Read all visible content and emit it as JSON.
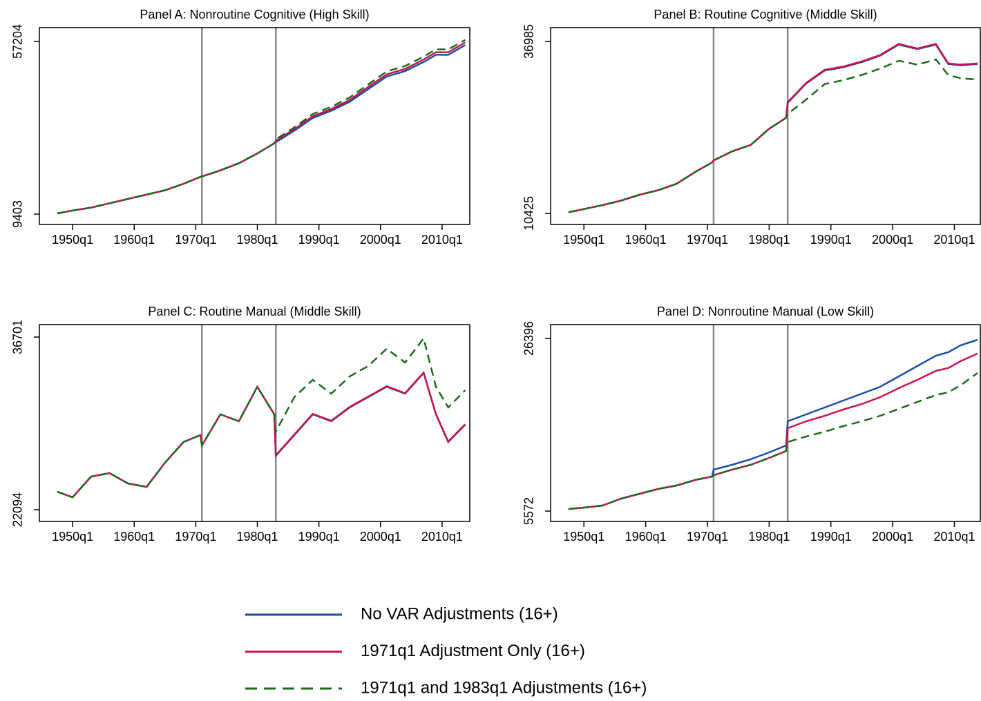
{
  "chart_data": [
    {
      "type": "line",
      "title": "Panel A: Nonroutine Cognitive (High Skill)",
      "x": [
        1947.5,
        1950,
        1953,
        1956,
        1959,
        1962,
        1965,
        1968,
        1970.75,
        1971,
        1974,
        1977,
        1980,
        1982.75,
        1983,
        1986,
        1989,
        1992,
        1995,
        1998,
        2001,
        2004,
        2007,
        2009,
        2011,
        2013.75
      ],
      "xlim": [
        1944.6,
        2014.5
      ],
      "ylim": [
        6535,
        61028
      ],
      "xticks": [
        {
          "value": 1950,
          "label": "1950q1"
        },
        {
          "value": 1960,
          "label": "1960q1"
        },
        {
          "value": 1970,
          "label": "1970q1"
        },
        {
          "value": 1980,
          "label": "1980q1"
        },
        {
          "value": 1990,
          "label": "1990q1"
        },
        {
          "value": 2000,
          "label": "2000q1"
        },
        {
          "value": 2010,
          "label": "2010q1"
        }
      ],
      "yticks": [
        9403,
        57204
      ],
      "vlines": [
        1971,
        1983
      ],
      "series": [
        {
          "name": "No VAR Adjustments (16+)",
          "color": "#1a4ea6",
          "dash": false,
          "values": [
            9600,
            10400,
            11200,
            12400,
            13600,
            14800,
            16000,
            17800,
            19700,
            19800,
            21500,
            23500,
            26200,
            29000,
            29300,
            32500,
            36000,
            38000,
            40500,
            44000,
            47500,
            49000,
            51500,
            53500,
            53500,
            56200
          ]
        },
        {
          "name": "1971q1 Adjustment Only (16+)",
          "color": "#c8144b",
          "dash": false,
          "values": [
            9600,
            10400,
            11200,
            12400,
            13600,
            14800,
            16000,
            17800,
            19700,
            19800,
            21500,
            23500,
            26200,
            29000,
            29700,
            32900,
            36500,
            38500,
            41000,
            44600,
            48100,
            49600,
            52200,
            54200,
            54200,
            56900
          ]
        },
        {
          "name": "1971q1 and 1983q1 Adjustments (16+)",
          "color": "#1a6b1a",
          "dash": true,
          "values": [
            9600,
            10400,
            11200,
            12400,
            13600,
            14800,
            16000,
            17800,
            19700,
            19800,
            21500,
            23500,
            26200,
            29000,
            30100,
            33400,
            37100,
            39100,
            41700,
            45300,
            48900,
            50400,
            53000,
            55000,
            55000,
            57600
          ]
        }
      ]
    },
    {
      "type": "line",
      "title": "Panel B: Routine Cognitive (Middle Skill)",
      "x": [
        1947.5,
        1950,
        1953,
        1956,
        1959,
        1962,
        1965,
        1968,
        1970.75,
        1971,
        1974,
        1977,
        1980,
        1982.75,
        1983,
        1986,
        1989,
        1992,
        1995,
        1998,
        2001,
        2004,
        2007,
        2009,
        2011,
        2013.75
      ],
      "xlim": [
        1944.6,
        2014.2
      ],
      "ylim": [
        8718,
        39119
      ],
      "xticks": [
        {
          "value": 1950,
          "label": "1950q1"
        },
        {
          "value": 1960,
          "label": "1960q1"
        },
        {
          "value": 1970,
          "label": "1970q1"
        },
        {
          "value": 1980,
          "label": "1980q1"
        },
        {
          "value": 1990,
          "label": "1990q1"
        },
        {
          "value": 2000,
          "label": "2000q1"
        },
        {
          "value": 2010,
          "label": "2010q1"
        }
      ],
      "yticks": [
        10425,
        36985
      ],
      "vlines": [
        1971,
        1983
      ],
      "series": [
        {
          "name": "No VAR Adjustments (16+)",
          "color": "#1a4ea6",
          "dash": false,
          "values": [
            10600,
            11100,
            11700,
            12400,
            13300,
            14000,
            15000,
            16800,
            18300,
            18600,
            20000,
            21000,
            23500,
            25200,
            27500,
            30500,
            32500,
            33000,
            33800,
            34800,
            36500,
            35800,
            36500,
            33500,
            33300,
            33500
          ]
        },
        {
          "name": "1971q1 Adjustment Only (16+)",
          "color": "#c8144b",
          "dash": false,
          "values": [
            10600,
            11100,
            11700,
            12400,
            13300,
            14000,
            15000,
            16800,
            18300,
            18600,
            20000,
            21000,
            23500,
            25200,
            27600,
            30600,
            32600,
            33100,
            33900,
            34900,
            36600,
            35900,
            36600,
            33600,
            33400,
            33600
          ]
        },
        {
          "name": "1971q1 and 1983q1 Adjustments (16+)",
          "color": "#1a6b1a",
          "dash": true,
          "values": [
            10600,
            11100,
            11700,
            12400,
            13300,
            14000,
            15000,
            16800,
            18300,
            18600,
            20000,
            21000,
            23500,
            25200,
            25800,
            28000,
            30400,
            31000,
            31800,
            32800,
            34000,
            33400,
            34200,
            31800,
            31300,
            31100
          ]
        }
      ]
    },
    {
      "type": "line",
      "title": "Panel C: Routine Manual (Middle Skill)",
      "x": [
        1947.5,
        1950,
        1953,
        1956,
        1959,
        1962,
        1965,
        1968,
        1970.75,
        1971,
        1974,
        1977,
        1980,
        1982.75,
        1983,
        1986,
        1989,
        1992,
        1995,
        1998,
        2001,
        2004,
        2007,
        2009,
        2011,
        2013.75
      ],
      "xlim": [
        1944.6,
        2014.5
      ],
      "ylim": [
        21101,
        37753
      ],
      "xticks": [
        {
          "value": 1950,
          "label": "1950q1"
        },
        {
          "value": 1960,
          "label": "1960q1"
        },
        {
          "value": 1970,
          "label": "1970q1"
        },
        {
          "value": 1980,
          "label": "1980q1"
        },
        {
          "value": 1990,
          "label": "1990q1"
        },
        {
          "value": 2000,
          "label": "2000q1"
        },
        {
          "value": 2010,
          "label": "2010q1"
        }
      ],
      "yticks": [
        22094,
        36701
      ],
      "vlines": [
        1971,
        1983
      ],
      "series": [
        {
          "name": "No VAR Adjustments (16+)",
          "color": "#1a4ea6",
          "dash": false,
          "values": [
            23613,
            23146,
            24900,
            25190,
            24314,
            24022,
            26067,
            27820,
            28405,
            27528,
            30157,
            29573,
            32495,
            30157,
            26651,
            28405,
            30157,
            29573,
            30742,
            31618,
            32495,
            31910,
            33663,
            30157,
            27820,
            29281
          ]
        },
        {
          "name": "1971q1 Adjustment Only (16+)",
          "color": "#c8144b",
          "dash": false,
          "values": [
            23613,
            23146,
            24900,
            25190,
            24314,
            24022,
            26067,
            27820,
            28405,
            27528,
            30157,
            29573,
            32495,
            30157,
            26700,
            28450,
            30200,
            29620,
            30790,
            31660,
            32540,
            31950,
            33700,
            30200,
            27860,
            29320
          ]
        },
        {
          "name": "1971q1 and 1983q1 Adjustments (16+)",
          "color": "#1a6b1a",
          "dash": true,
          "values": [
            23613,
            23146,
            24900,
            25190,
            24314,
            24022,
            26067,
            27820,
            28405,
            27528,
            30157,
            29573,
            32495,
            30157,
            28697,
            31618,
            33079,
            31910,
            33371,
            34247,
            35708,
            34539,
            36585,
            32495,
            30742,
            32203
          ]
        }
      ]
    },
    {
      "type": "line",
      "title": "Panel D: Nonroutine Manual (Low Skill)",
      "x": [
        1947.5,
        1950,
        1953,
        1956,
        1959,
        1962,
        1965,
        1968,
        1970.75,
        1971,
        1974,
        1977,
        1980,
        1982.75,
        1983,
        1986,
        1989,
        1992,
        1995,
        1998,
        2001,
        2004,
        2007,
        2009,
        2011,
        2013.75
      ],
      "xlim": [
        1944.6,
        2014.2
      ],
      "ylim": [
        4323,
        28062
      ],
      "xticks": [
        {
          "value": 1950,
          "label": "1950q1"
        },
        {
          "value": 1960,
          "label": "1960q1"
        },
        {
          "value": 1970,
          "label": "1970q1"
        },
        {
          "value": 1980,
          "label": "1980q1"
        },
        {
          "value": 1990,
          "label": "1990q1"
        },
        {
          "value": 2000,
          "label": "2000q1"
        },
        {
          "value": 2010,
          "label": "2010q1"
        }
      ],
      "yticks": [
        5572,
        26396
      ],
      "vlines": [
        1971,
        1983
      ],
      "series": [
        {
          "name": "No VAR Adjustments (16+)",
          "color": "#1a4ea6",
          "dash": false,
          "values": [
            5822,
            5989,
            6238,
            7071,
            7655,
            8238,
            8654,
            9321,
            9737,
            10570,
            11153,
            11820,
            12653,
            13486,
            16401,
            17234,
            18067,
            18900,
            19733,
            20566,
            21816,
            23065,
            24314,
            24731,
            25564,
            26230
          ]
        },
        {
          "name": "1971q1 Adjustment Only (16+)",
          "color": "#c8144b",
          "dash": false,
          "values": [
            5822,
            5989,
            6238,
            7071,
            7655,
            8238,
            8654,
            9321,
            9737,
            9904,
            10570,
            11153,
            11986,
            12819,
            15568,
            16401,
            17067,
            17817,
            18484,
            19317,
            20400,
            21399,
            22482,
            22815,
            23648,
            24564
          ]
        },
        {
          "name": "1971q1 and 1983q1 Adjustments (16+)",
          "color": "#1a6b1a",
          "dash": true,
          "values": [
            5822,
            5989,
            6238,
            7071,
            7655,
            8238,
            8654,
            9321,
            9737,
            9904,
            10570,
            11153,
            11986,
            12819,
            13902,
            14568,
            15151,
            15818,
            16401,
            17067,
            17900,
            18733,
            19566,
            19900,
            20733,
            22232
          ]
        }
      ]
    }
  ]
}
